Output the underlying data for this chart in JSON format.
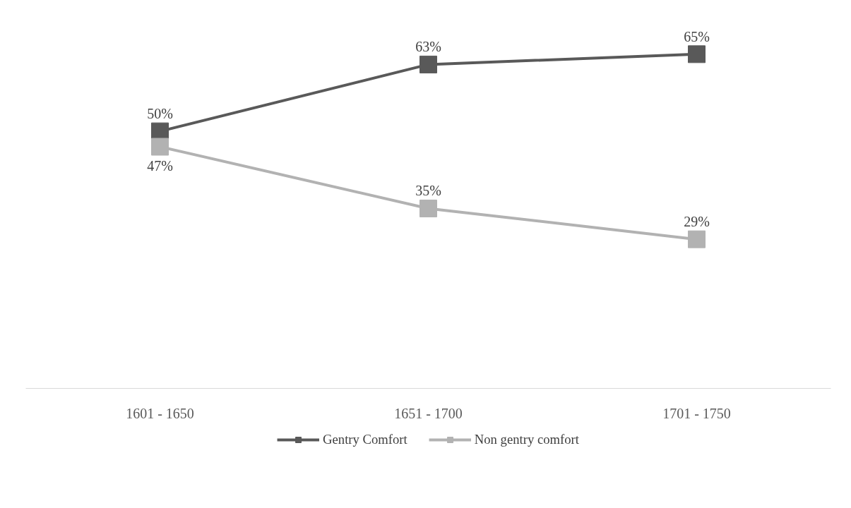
{
  "chart_data": {
    "type": "line",
    "categories": [
      "1601 - 1650",
      "1651 - 1700",
      "1701 - 1750"
    ],
    "series": [
      {
        "name": "Gentry Comfort",
        "color": "#595959",
        "values": [
          50,
          63,
          65
        ],
        "value_labels": [
          "50%",
          "63%",
          "65%"
        ]
      },
      {
        "name": "Non gentry comfort",
        "color": "#b2b2b2",
        "values": [
          47,
          35,
          29
        ],
        "value_labels": [
          "47%",
          "35%",
          "29%"
        ]
      }
    ],
    "marker": "square",
    "line_style": "solid",
    "grid": false,
    "legend": "bottom"
  }
}
